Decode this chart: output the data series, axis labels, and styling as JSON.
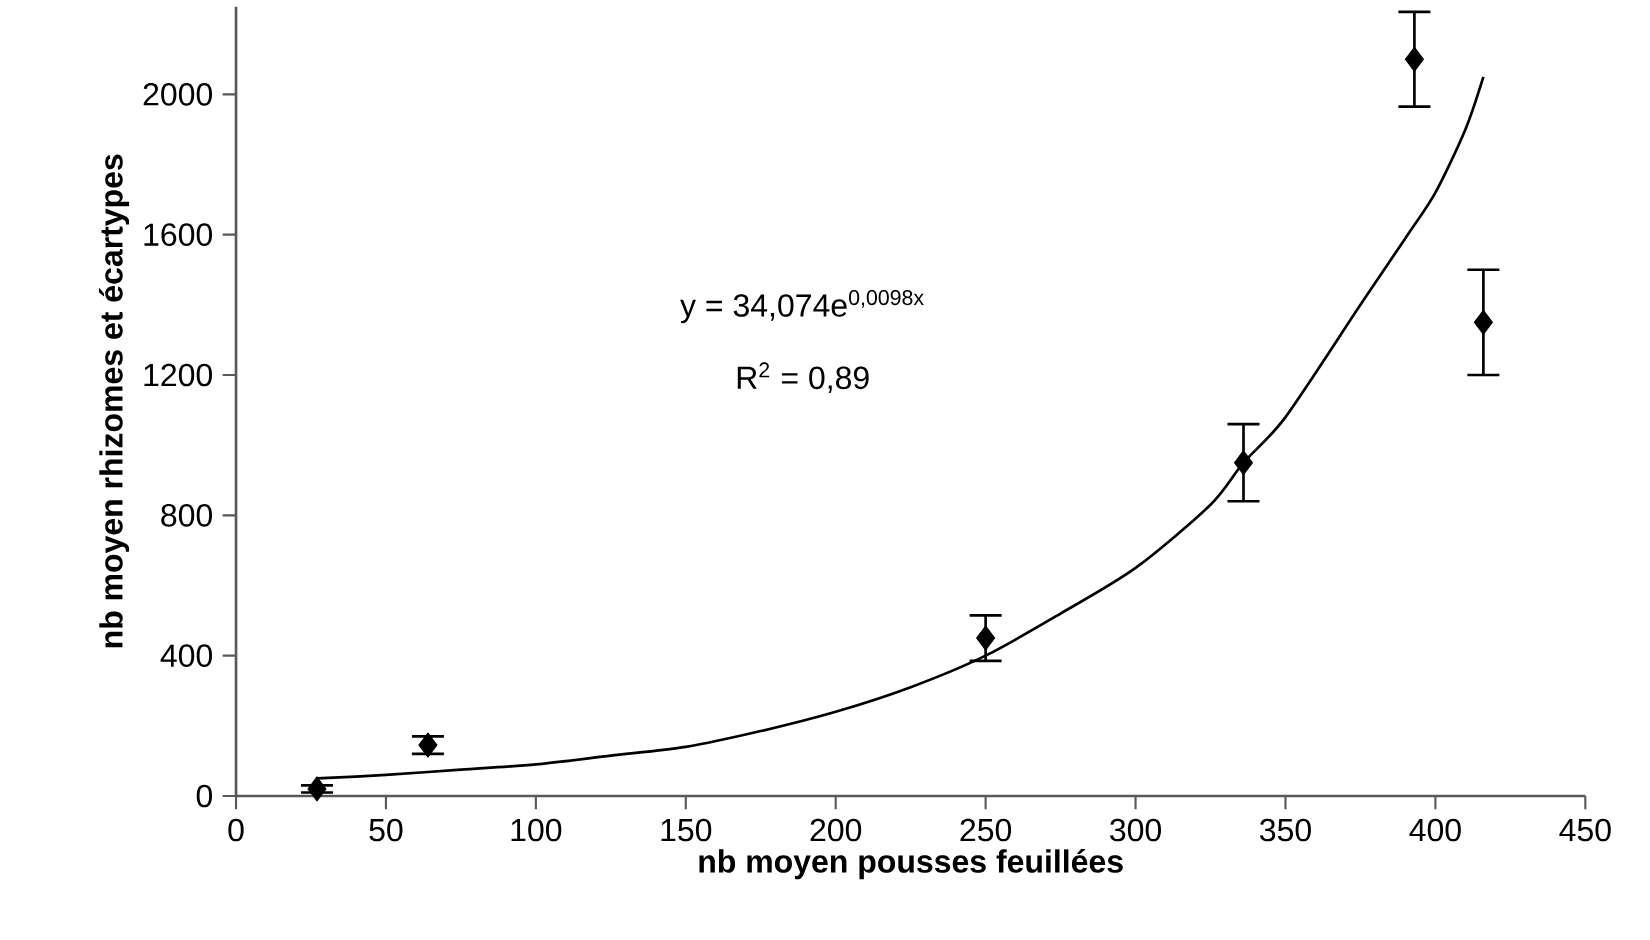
{
  "chart_data": {
    "type": "scatter",
    "xlabel": "nb moyen pousses feuillées",
    "ylabel": "nb moyen rhizomes et écartypes",
    "xlim": [
      0,
      450
    ],
    "xticks": [
      0,
      50,
      100,
      150,
      200,
      250,
      300,
      350,
      400,
      450
    ],
    "ylim": [
      0,
      2250
    ],
    "yticks": [
      0,
      400,
      800,
      1200,
      1600,
      2000
    ],
    "grid": false,
    "series": [
      {
        "color": "#000000",
        "marker": "diamond",
        "x": [
          27,
          64,
          250,
          336,
          393,
          416
        ],
        "values": [
          20,
          145,
          450,
          950,
          2100,
          1350
        ],
        "errors": [
          10,
          25,
          65,
          110,
          135,
          150
        ]
      },
      {
        "type": "line",
        "color": "#000000",
        "line_style": "solid",
        "x": [
          27,
          50,
          75,
          100,
          125,
          150,
          175,
          200,
          225,
          250,
          275,
          300,
          325,
          336,
          350,
          375,
          390,
          400,
          410,
          416
        ],
        "values": [
          50,
          60,
          75,
          90,
          115,
          140,
          185,
          240,
          310,
          400,
          520,
          650,
          830,
          950,
          1080,
          1400,
          1590,
          1720,
          1900,
          2050
        ]
      }
    ],
    "annotations": [
      "y = 34,074e$^{0,0098x}$",
      "R$^{2}$ = 0,89"
    ]
  }
}
